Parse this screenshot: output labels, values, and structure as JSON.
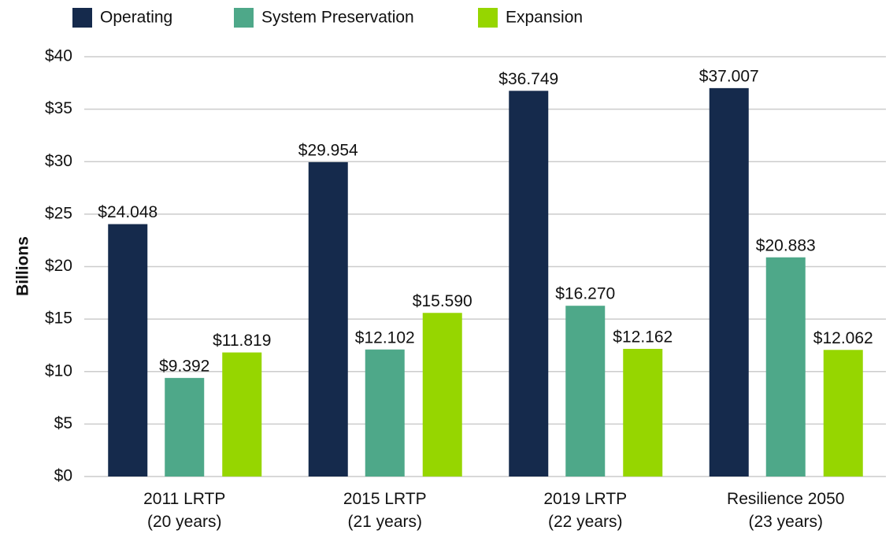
{
  "chart_data": {
    "type": "bar",
    "categories": [
      "2011 LRTP\n(20 years)",
      "2015 LRTP\n(21 years)",
      "2019 LRTP\n(22 years)",
      "Resilience 2050\n(23 years)"
    ],
    "series": [
      {
        "name": "Operating",
        "color": "#152a4c",
        "values": [
          24.048,
          29.954,
          36.749,
          37.007
        ],
        "value_labels": [
          "$24.048",
          "$29.954",
          "$36.749",
          "$37.007"
        ]
      },
      {
        "name": "System Preservation",
        "color": "#4ea889",
        "values": [
          9.392,
          12.102,
          16.27,
          20.883
        ],
        "value_labels": [
          "$9.392",
          "$12.102",
          "$16.270",
          "$20.883"
        ]
      },
      {
        "name": "Expansion",
        "color": "#96d600",
        "values": [
          11.819,
          15.59,
          12.162,
          12.062
        ],
        "value_labels": [
          "$11.819",
          "$15.590",
          "$12.162",
          "$12.062"
        ]
      }
    ],
    "y_label": "Billions",
    "ylim": [
      0,
      40
    ],
    "yticks": [
      {
        "value": 0,
        "label": "$0"
      },
      {
        "value": 5,
        "label": "$5"
      },
      {
        "value": 10,
        "label": "$10"
      },
      {
        "value": 15,
        "label": "$15"
      },
      {
        "value": 20,
        "label": "$20"
      },
      {
        "value": 25,
        "label": "$25"
      },
      {
        "value": 30,
        "label": "$30"
      },
      {
        "value": 35,
        "label": "$35"
      },
      {
        "value": 40,
        "label": "$40"
      }
    ],
    "grid": true,
    "legend": "top"
  }
}
